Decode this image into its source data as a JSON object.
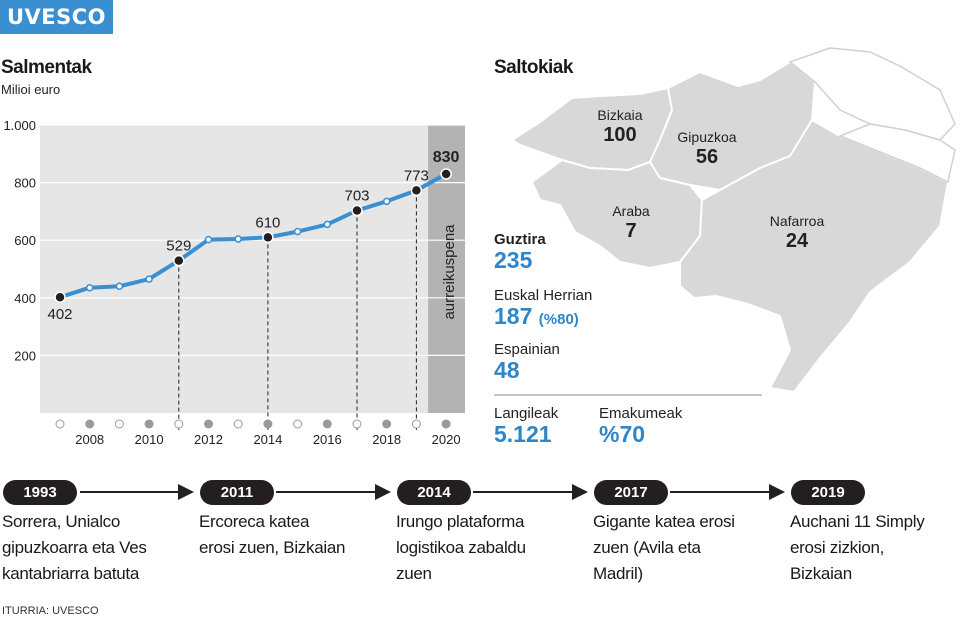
{
  "brand": "UVESCO",
  "sales": {
    "title": "Salmentak",
    "subtitle": "Milioi euro",
    "forecast_label": "aurreikuspena"
  },
  "chart_data": {
    "type": "line",
    "title": "Salmentak",
    "subtitle": "Milioi euro",
    "x": [
      2007,
      2008,
      2009,
      2010,
      2011,
      2012,
      2013,
      2014,
      2015,
      2016,
      2017,
      2018,
      2019,
      2020
    ],
    "values": [
      402,
      435,
      440,
      465,
      529,
      602,
      604,
      610,
      630,
      655,
      703,
      735,
      773,
      830
    ],
    "ylim": [
      0,
      1000
    ],
    "yticks": [
      200,
      400,
      600,
      800,
      1000
    ],
    "ytick_labels": [
      "200",
      "400",
      "600",
      "800",
      "1.000"
    ],
    "xtick_labels": [
      "2008",
      "2010",
      "2012",
      "2014",
      "2016",
      "2018",
      "2020"
    ],
    "highlighted": [
      {
        "x": 2007,
        "label": "402"
      },
      {
        "x": 2011,
        "label": "529"
      },
      {
        "x": 2014,
        "label": "610"
      },
      {
        "x": 2017,
        "label": "703"
      },
      {
        "x": 2019,
        "label": "773"
      },
      {
        "x": 2020,
        "label": "830"
      }
    ],
    "forecast_from": 2020,
    "line_color": "#3a8fd0",
    "grid": true
  },
  "stores": {
    "title": "Saltokiak",
    "regions": [
      {
        "name": "Bizkaia",
        "value": "100"
      },
      {
        "name": "Gipuzkoa",
        "value": "56"
      },
      {
        "name": "Araba",
        "value": "7"
      },
      {
        "name": "Nafarroa",
        "value": "24"
      }
    ],
    "total_label": "Guztira",
    "total_value": "235",
    "eh_label": "Euskal Herrian",
    "eh_value": "187",
    "eh_pct": "(%80)",
    "spain_label": "Espainian",
    "spain_value": "48",
    "workers_label": "Langileak",
    "workers_value": "5.121",
    "women_label": "Emakumeak",
    "women_value": "%70"
  },
  "timeline": [
    {
      "year": "1993",
      "text": [
        "Sorrera, Unialco",
        "gipuzkoarra eta Ves",
        "kantabriarra batuta"
      ]
    },
    {
      "year": "2011",
      "text": [
        "Ercoreca katea",
        "erosi zuen, Bizkaian"
      ]
    },
    {
      "year": "2014",
      "text": [
        "Irungo plataforma",
        "logistikoa zabaldu",
        "zuen"
      ]
    },
    {
      "year": "2017",
      "text": [
        "Gigante katea erosi",
        "zuen (Avila eta",
        "Madril)"
      ]
    },
    {
      "year": "2019",
      "text": [
        "Auchani 11 Simply",
        "erosi zizkion,",
        "Bizkaian"
      ]
    }
  ],
  "source": "ITURRIA: UVESCO",
  "colors": {
    "accent": "#3a8fd0",
    "value_blue": "#2e86c8",
    "map_fill": "#d8d8d8",
    "chart_bg": "#e6e6e6"
  }
}
